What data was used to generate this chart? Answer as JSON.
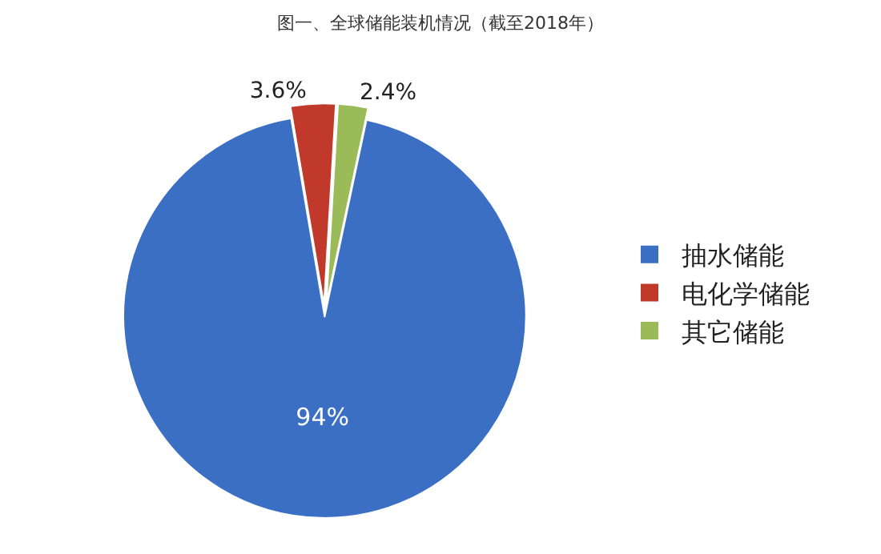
{
  "chart_data": {
    "type": "pie",
    "title": "图一、全球储能装机情况（截至2018年）",
    "categories": [
      "抽水储能",
      "电化学储能",
      "其它储能"
    ],
    "values": [
      94,
      3.6,
      2.4
    ],
    "value_labels": [
      "94%",
      "3.6%",
      "2.4%"
    ],
    "colors": [
      "#3a6fc4",
      "#c0392b",
      "#9bbb59"
    ],
    "legend": "right"
  }
}
